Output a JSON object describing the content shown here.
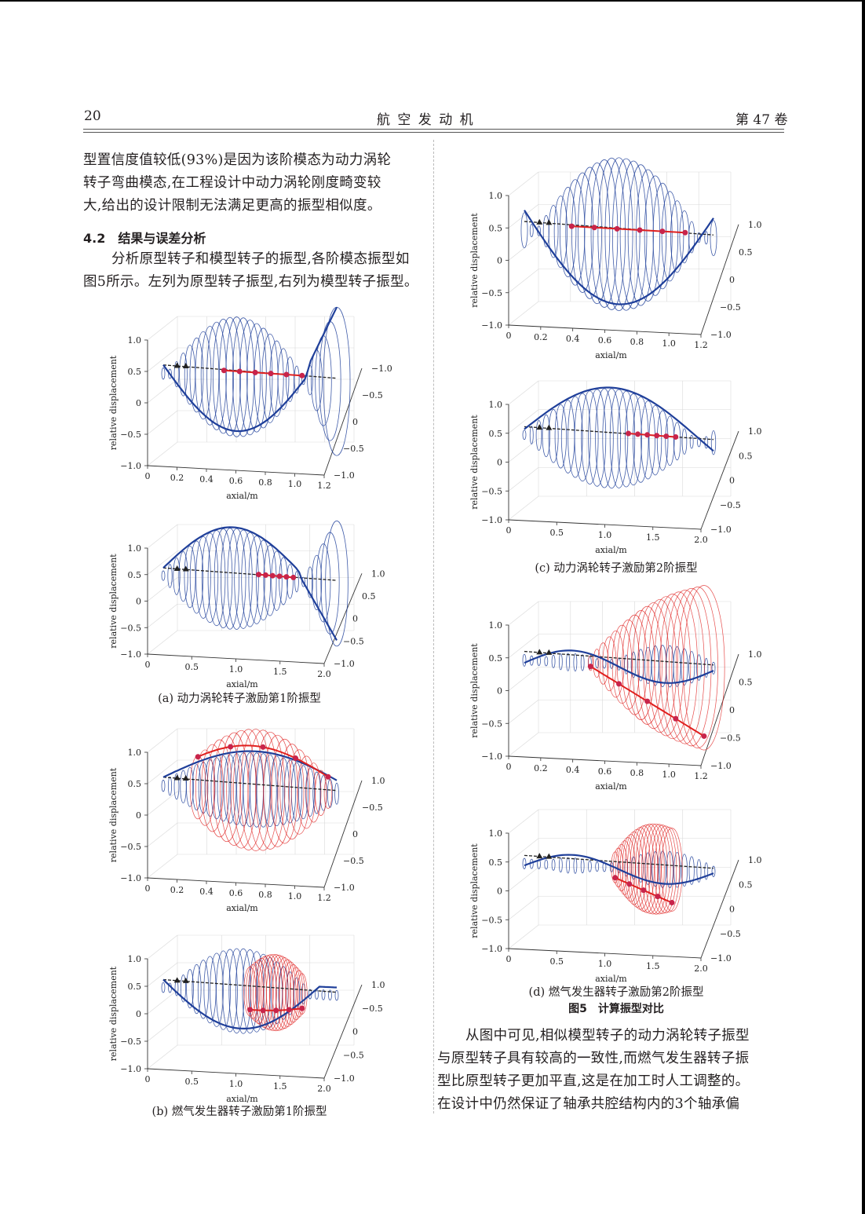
{
  "header": {
    "page_number": "20",
    "journal": "航 空 发 动 机",
    "volume": "第 47 卷"
  },
  "left_col": {
    "para1": [
      "型置信度值较低(93%)是因为该阶模态为动力涡轮",
      "转子弯曲模态,在工程设计中动力涡轮刚度畸变较",
      "大,给出的设计限制无法满足更高的振型相似度。"
    ],
    "section_heading": "4.2　结果与误差分析",
    "para2": [
      "分析原型转子和模型转子的振型,各阶模态振型如",
      "图5所示。左列为原型转子振型,右列为模型转子振型。"
    ]
  },
  "right_col": {
    "para": [
      "从图中可见,相似模型转子的动力涡轮转子振型",
      "与原型转子具有较高的一致性,而燃气发生器转子振",
      "型比原型转子更加平直,这是在加工时人工调整的。",
      "在设计中仍然保证了轴承共腔结构内的3个轴承偏"
    ]
  },
  "figure": {
    "title": "图5　计算振型对比",
    "captions": {
      "a": "(a) 动力涡轮转子激励第1阶振型",
      "b": "(b) 燃气发生器转子激励第1阶振型",
      "c": "(c) 动力涡轮转子激励第2阶振型",
      "d": "(d) 燃气发生器转子激励第2阶振型"
    }
  },
  "chart_data": [
    {
      "panel": "a-top",
      "type": "line",
      "xlabel": "axial/m",
      "ylabel": "relative displacement",
      "xticks": [
        "0",
        "0.2",
        "0.4",
        "0.6",
        "0.8",
        "1.0",
        "1.2"
      ],
      "yticks": [
        "1.0",
        "0.5",
        "0",
        "-0.5",
        "-1.0"
      ],
      "zticks": [
        "-1.0",
        "-0.5",
        "0",
        "-0.5",
        "-1.0"
      ],
      "xlim": [
        0,
        1.2
      ],
      "ylim": [
        -1,
        1
      ],
      "curve_mode": "pt1",
      "orbit_mode": "pt1",
      "gg": false
    },
    {
      "panel": "a-bottom",
      "type": "line",
      "xlabel": "axial/m",
      "ylabel": "relative displacement",
      "xticks": [
        "0",
        "0.5",
        "1.0",
        "1.5",
        "2.0"
      ],
      "yticks": [
        "1.0",
        "0.5",
        "0",
        "-0.5",
        "-1.0"
      ],
      "zticks": [
        "1.0",
        "0.5",
        "0",
        "-0.5",
        "-1.0"
      ],
      "xlim": [
        0,
        2
      ],
      "ylim": [
        -1,
        1
      ],
      "curve_mode": "pt1b",
      "orbit_mode": "pt1b",
      "gg": false
    },
    {
      "panel": "b-top",
      "type": "line",
      "xlabel": "axial/m",
      "ylabel": "relative displacement",
      "xticks": [
        "0",
        "0.2",
        "0.4",
        "0.6",
        "0.8",
        "1.0",
        "1.2"
      ],
      "yticks": [
        "1.0",
        "0.5",
        "0",
        "-0.5",
        "-1.0"
      ],
      "zticks": [
        "1.0",
        "-0.5",
        "0",
        "-0.5",
        "-1.0"
      ],
      "xlim": [
        0,
        1.2
      ],
      "ylim": [
        -1,
        1
      ],
      "curve_mode": "gg1",
      "orbit_mode": "gg1",
      "gg": true
    },
    {
      "panel": "b-bottom",
      "type": "line",
      "xlabel": "axial/m",
      "ylabel": "relative displacement",
      "xticks": [
        "0",
        "0.5",
        "1.0",
        "1.5",
        "2.0"
      ],
      "yticks": [
        "1.0",
        "0.5",
        "0",
        "-0.5",
        "-1.0"
      ],
      "zticks": [
        "1.0",
        "-0.5",
        "0",
        "-0.5",
        "-1.0"
      ],
      "xlim": [
        0,
        2
      ],
      "ylim": [
        -1,
        1
      ],
      "curve_mode": "gg1b",
      "orbit_mode": "gg1b",
      "gg": true
    },
    {
      "panel": "c-top",
      "type": "line",
      "xlabel": "axial/m",
      "ylabel": "relative displacement",
      "xticks": [
        "0",
        "0.2",
        "0.4",
        "0.6",
        "0.8",
        "1.0",
        "1.2"
      ],
      "yticks": [
        "1.0",
        "0.5",
        "0",
        "-0.5",
        "-1.0"
      ],
      "zticks": [
        "1.0",
        "0.5",
        "0",
        "-0.5",
        "-1.0"
      ],
      "xlim": [
        0,
        1.2
      ],
      "ylim": [
        -1,
        1
      ],
      "curve_mode": "pt2",
      "orbit_mode": "pt2",
      "gg": false
    },
    {
      "panel": "c-bottom",
      "type": "line",
      "xlabel": "axial/m",
      "ylabel": "relative displacement",
      "xticks": [
        "0",
        "0.5",
        "1.0",
        "1.5",
        "2.0"
      ],
      "yticks": [
        "1.0",
        "0.5",
        "0",
        "-0.5",
        "-1.0"
      ],
      "zticks": [
        "1.0",
        "0.5",
        "0",
        "-0.5",
        "-1.0"
      ],
      "xlim": [
        0,
        2
      ],
      "ylim": [
        -1,
        1
      ],
      "curve_mode": "pt2b",
      "orbit_mode": "pt2b",
      "gg": false
    },
    {
      "panel": "d-top",
      "type": "line",
      "xlabel": "axial/m",
      "ylabel": "relative displacement",
      "xticks": [
        "0",
        "0.2",
        "0.4",
        "0.6",
        "0.8",
        "1.0",
        "1.2"
      ],
      "yticks": [
        "1.0",
        "0.5",
        "0",
        "-0.5",
        "-1.0"
      ],
      "zticks": [
        "1.0",
        "0.5",
        "0",
        "-0.5",
        "-1.0"
      ],
      "xlim": [
        0,
        1.2
      ],
      "ylim": [
        -1,
        1
      ],
      "curve_mode": "gg2",
      "orbit_mode": "gg2",
      "gg": true
    },
    {
      "panel": "d-bottom",
      "type": "line",
      "xlabel": "axial/m",
      "ylabel": "relative displacement",
      "xticks": [
        "0",
        "0.5",
        "1.0",
        "1.5",
        "2.0"
      ],
      "yticks": [
        "1.0",
        "0.5",
        "0",
        "-0.5",
        "-1.0"
      ],
      "zticks": [
        "1.0",
        "0.5",
        "0",
        "-0.5",
        "-1.0"
      ],
      "xlim": [
        0,
        2
      ],
      "ylim": [
        -1,
        1
      ],
      "curve_mode": "gg2b",
      "orbit_mode": "gg2b",
      "gg": true
    }
  ],
  "colors": {
    "blue": "#1f3f9a",
    "red": "#e0201f",
    "black": "#222222",
    "grid": "#d9d9d9"
  }
}
